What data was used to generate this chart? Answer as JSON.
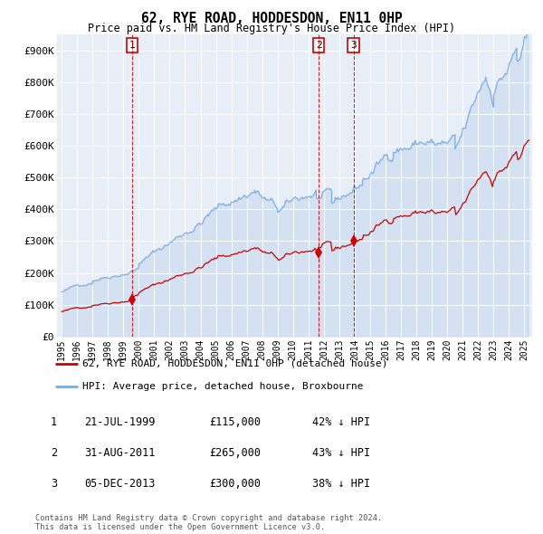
{
  "title": "62, RYE ROAD, HODDESDON, EN11 0HP",
  "subtitle": "Price paid vs. HM Land Registry's House Price Index (HPI)",
  "hpi_color": "#7aaadd",
  "sale_color": "#cc0000",
  "sale_dates": [
    1999.55,
    2011.67,
    2013.92
  ],
  "sale_prices": [
    115000,
    265000,
    300000
  ],
  "sale_labels": [
    "1",
    "2",
    "3"
  ],
  "ylim": [
    0,
    950000
  ],
  "yticks": [
    0,
    100000,
    200000,
    300000,
    400000,
    500000,
    600000,
    700000,
    800000,
    900000
  ],
  "ytick_labels": [
    "£0",
    "£100K",
    "£200K",
    "£300K",
    "£400K",
    "£500K",
    "£600K",
    "£700K",
    "£800K",
    "£900K"
  ],
  "xtick_years": [
    1995,
    1996,
    1997,
    1998,
    1999,
    2000,
    2001,
    2002,
    2003,
    2004,
    2005,
    2006,
    2007,
    2008,
    2009,
    2010,
    2011,
    2012,
    2013,
    2014,
    2015,
    2016,
    2017,
    2018,
    2019,
    2020,
    2021,
    2022,
    2023,
    2024,
    2025
  ],
  "legend_line1": "62, RYE ROAD, HODDESDON, EN11 0HP (detached house)",
  "legend_line2": "HPI: Average price, detached house, Broxbourne",
  "table_rows": [
    {
      "label": "1",
      "date": "21-JUL-1999",
      "price": "£115,000",
      "note": "42% ↓ HPI"
    },
    {
      "label": "2",
      "date": "31-AUG-2011",
      "price": "£265,000",
      "note": "43% ↓ HPI"
    },
    {
      "label": "3",
      "date": "05-DEC-2013",
      "price": "£300,000",
      "note": "38% ↓ HPI"
    }
  ],
  "footer": "Contains HM Land Registry data © Crown copyright and database right 2024.\nThis data is licensed under the Open Government Licence v3.0.",
  "plot_bg": "#e8eef8"
}
